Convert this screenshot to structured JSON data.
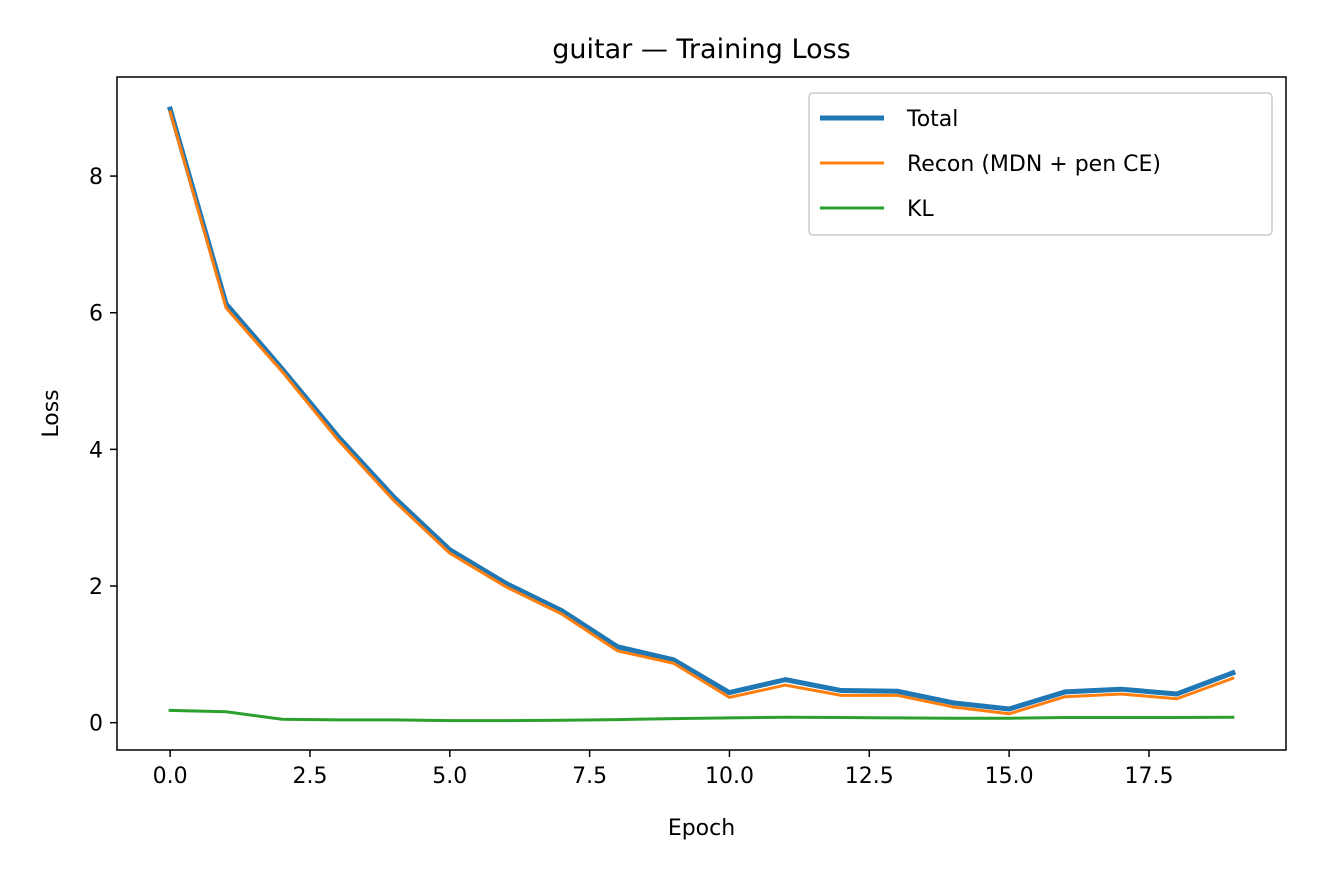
{
  "chart_data": {
    "type": "line",
    "title": "guitar — Training Loss",
    "xlabel": "Epoch",
    "ylabel": "Loss",
    "xlim": [
      -0.95,
      19.95
    ],
    "ylim": [
      -0.4,
      9.45
    ],
    "xticks": [
      0.0,
      2.5,
      5.0,
      7.5,
      10.0,
      12.5,
      15.0,
      17.5
    ],
    "xtick_labels": [
      "0.0",
      "2.5",
      "5.0",
      "7.5",
      "10.0",
      "12.5",
      "15.0",
      "17.5"
    ],
    "yticks": [
      0,
      2,
      4,
      6,
      8
    ],
    "ytick_labels": [
      "0",
      "2",
      "4",
      "6",
      "8"
    ],
    "grid": false,
    "legend_position": "top-right",
    "x": [
      0,
      1,
      2,
      3,
      4,
      5,
      6,
      7,
      8,
      9,
      10,
      11,
      12,
      13,
      14,
      15,
      16,
      17,
      18,
      19
    ],
    "series": [
      {
        "name": "Total",
        "color": "#1f77b4",
        "width": "thick",
        "values": [
          8.98,
          6.13,
          5.18,
          4.19,
          3.3,
          2.53,
          2.04,
          1.64,
          1.11,
          0.92,
          0.44,
          0.63,
          0.47,
          0.46,
          0.29,
          0.2,
          0.45,
          0.49,
          0.42,
          0.73
        ]
      },
      {
        "name": "Recon (MDN + pen CE)",
        "color": "#ff7f0e",
        "width": "normal",
        "values": [
          8.94,
          6.07,
          5.14,
          4.14,
          3.25,
          2.48,
          1.99,
          1.59,
          1.05,
          0.87,
          0.37,
          0.55,
          0.4,
          0.4,
          0.23,
          0.13,
          0.38,
          0.42,
          0.35,
          0.65
        ]
      },
      {
        "name": "KL",
        "color": "#2ca02c",
        "width": "normal",
        "values": [
          0.18,
          0.16,
          0.05,
          0.04,
          0.04,
          0.03,
          0.03,
          0.035,
          0.045,
          0.06,
          0.07,
          0.08,
          0.075,
          0.07,
          0.065,
          0.065,
          0.075,
          0.075,
          0.075,
          0.08
        ]
      }
    ]
  }
}
